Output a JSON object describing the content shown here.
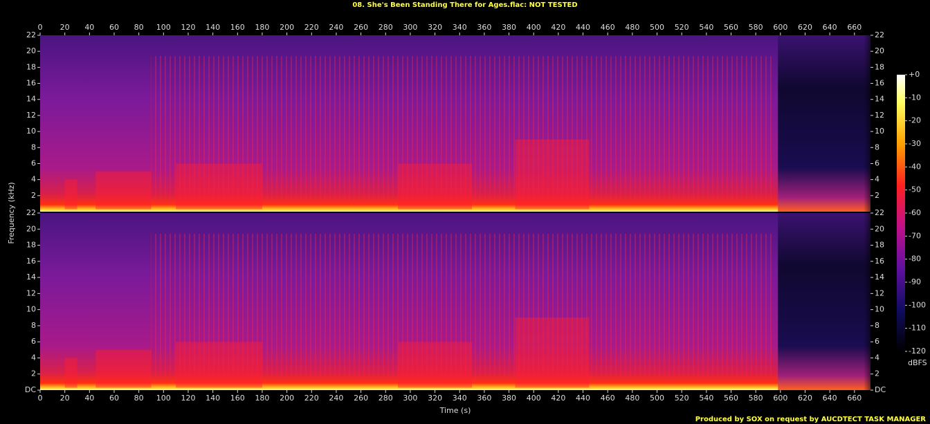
{
  "chart_data": {
    "type": "spectrogram",
    "title": "08. She's Been Standing There for Ages.flac: NOT TESTED",
    "x_label": "Time (s)",
    "y_label": "Frequency (kHz)",
    "footer": "Produced by SOX on request by AUCDTECT TASK MANAGER",
    "xlim": [
      0,
      673
    ],
    "xticks": [
      0,
      20,
      40,
      60,
      80,
      100,
      120,
      140,
      160,
      180,
      200,
      220,
      240,
      260,
      280,
      300,
      320,
      340,
      360,
      380,
      400,
      420,
      440,
      460,
      480,
      500,
      520,
      540,
      560,
      580,
      600,
      620,
      640,
      660
    ],
    "channels": [
      {
        "ylim": [
          0,
          22
        ],
        "yticks": [
          2,
          4,
          6,
          8,
          10,
          12,
          14,
          16,
          18,
          20,
          22
        ]
      },
      {
        "ylim": [
          0,
          22
        ],
        "yticks": [
          {
            "value": 0,
            "label": "DC"
          },
          2,
          4,
          6,
          8,
          10,
          12,
          14,
          16,
          18,
          20,
          22
        ]
      }
    ],
    "colorbar": {
      "label": "dBFS",
      "lim": [
        -120,
        0
      ],
      "ticks": [
        {
          "value": 0,
          "label": "+0"
        },
        -10,
        -20,
        -30,
        -40,
        -50,
        -60,
        -70,
        -80,
        -90,
        -100,
        -110,
        -120
      ]
    }
  }
}
